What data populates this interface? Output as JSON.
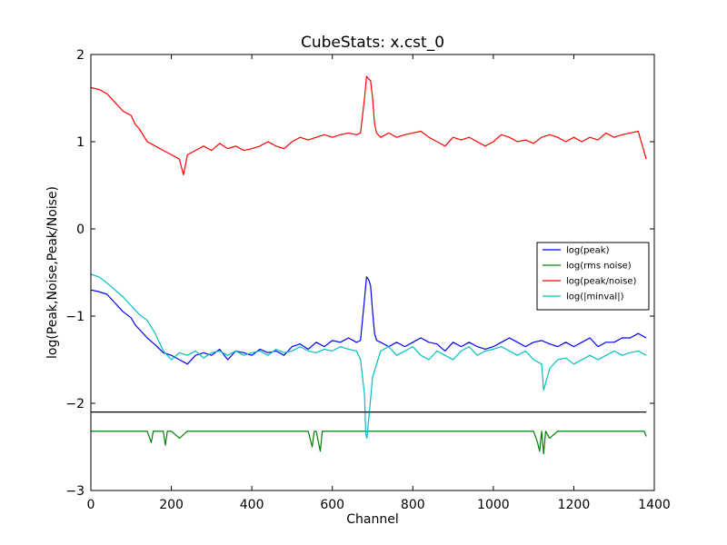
{
  "chart_data": {
    "type": "line",
    "title": "CubeStats: x.cst_0",
    "xlabel": "Channel",
    "ylabel": "log(Peak,Noise,Peak/Noise)",
    "xlim": [
      0,
      1400
    ],
    "ylim": [
      -3,
      2
    ],
    "xticks": [
      0,
      200,
      400,
      600,
      800,
      1000,
      1200,
      1400
    ],
    "yticks": [
      -3,
      -2,
      -1,
      0,
      1,
      2
    ],
    "xtick_labels": [
      "0",
      "200",
      "400",
      "600",
      "800",
      "1000",
      "1200",
      "1400"
    ],
    "ytick_labels": [
      "−3",
      "−2",
      "−1",
      "0",
      "1",
      "2"
    ],
    "grid": false,
    "legend_position": "center-right",
    "series": [
      {
        "name": "log(peak)",
        "color": "#0000ff",
        "x": [
          0,
          20,
          40,
          60,
          80,
          100,
          110,
          120,
          140,
          160,
          180,
          200,
          220,
          240,
          260,
          280,
          300,
          320,
          340,
          360,
          380,
          400,
          420,
          440,
          460,
          480,
          500,
          520,
          540,
          560,
          580,
          600,
          620,
          640,
          660,
          670,
          680,
          685,
          690,
          695,
          700,
          705,
          710,
          720,
          740,
          760,
          780,
          800,
          820,
          840,
          860,
          880,
          900,
          920,
          940,
          960,
          980,
          1000,
          1020,
          1040,
          1060,
          1080,
          1100,
          1120,
          1140,
          1160,
          1180,
          1200,
          1220,
          1240,
          1260,
          1280,
          1300,
          1320,
          1340,
          1360,
          1380
        ],
        "y": [
          -0.7,
          -0.72,
          -0.75,
          -0.85,
          -0.95,
          -1.02,
          -1.1,
          -1.15,
          -1.25,
          -1.33,
          -1.42,
          -1.45,
          -1.5,
          -1.55,
          -1.45,
          -1.42,
          -1.45,
          -1.38,
          -1.5,
          -1.4,
          -1.42,
          -1.45,
          -1.38,
          -1.42,
          -1.4,
          -1.45,
          -1.35,
          -1.32,
          -1.38,
          -1.3,
          -1.35,
          -1.28,
          -1.3,
          -1.25,
          -1.3,
          -1.28,
          -0.8,
          -0.55,
          -0.58,
          -0.65,
          -0.95,
          -1.2,
          -1.28,
          -1.3,
          -1.35,
          -1.3,
          -1.35,
          -1.3,
          -1.25,
          -1.3,
          -1.32,
          -1.4,
          -1.3,
          -1.35,
          -1.3,
          -1.35,
          -1.38,
          -1.35,
          -1.3,
          -1.25,
          -1.3,
          -1.35,
          -1.3,
          -1.28,
          -1.32,
          -1.35,
          -1.3,
          -1.35,
          -1.3,
          -1.25,
          -1.35,
          -1.3,
          -1.3,
          -1.25,
          -1.25,
          -1.2,
          -1.25
        ]
      },
      {
        "name": "log(rms noise)",
        "color": "#008000",
        "x": [
          0,
          20,
          40,
          60,
          80,
          100,
          120,
          140,
          150,
          155,
          160,
          180,
          185,
          190,
          200,
          220,
          240,
          260,
          280,
          300,
          320,
          340,
          360,
          380,
          400,
          420,
          440,
          460,
          480,
          500,
          520,
          540,
          550,
          555,
          560,
          570,
          575,
          580,
          600,
          620,
          640,
          660,
          680,
          700,
          720,
          740,
          760,
          780,
          800,
          820,
          840,
          860,
          880,
          900,
          920,
          940,
          960,
          980,
          1000,
          1020,
          1040,
          1060,
          1080,
          1100,
          1110,
          1115,
          1120,
          1125,
          1130,
          1140,
          1160,
          1180,
          1200,
          1220,
          1240,
          1260,
          1280,
          1300,
          1320,
          1340,
          1360,
          1375,
          1380
        ],
        "y": [
          -2.32,
          -2.32,
          -2.32,
          -2.32,
          -2.32,
          -2.32,
          -2.32,
          -2.32,
          -2.45,
          -2.32,
          -2.32,
          -2.32,
          -2.48,
          -2.32,
          -2.32,
          -2.4,
          -2.32,
          -2.32,
          -2.32,
          -2.32,
          -2.32,
          -2.32,
          -2.32,
          -2.32,
          -2.32,
          -2.32,
          -2.32,
          -2.32,
          -2.32,
          -2.32,
          -2.32,
          -2.32,
          -2.5,
          -2.32,
          -2.32,
          -2.55,
          -2.32,
          -2.32,
          -2.32,
          -2.32,
          -2.32,
          -2.32,
          -2.32,
          -2.32,
          -2.32,
          -2.32,
          -2.32,
          -2.32,
          -2.32,
          -2.32,
          -2.32,
          -2.32,
          -2.32,
          -2.32,
          -2.32,
          -2.32,
          -2.32,
          -2.32,
          -2.32,
          -2.32,
          -2.32,
          -2.32,
          -2.32,
          -2.32,
          -2.45,
          -2.55,
          -2.32,
          -2.58,
          -2.32,
          -2.4,
          -2.32,
          -2.32,
          -2.32,
          -2.32,
          -2.32,
          -2.32,
          -2.32,
          -2.32,
          -2.32,
          -2.32,
          -2.32,
          -2.32,
          -2.38
        ]
      },
      {
        "name": "log(peak/noise)",
        "color": "#ff0000",
        "x": [
          0,
          20,
          40,
          60,
          80,
          100,
          110,
          120,
          140,
          160,
          180,
          200,
          220,
          230,
          240,
          260,
          280,
          300,
          320,
          340,
          360,
          380,
          400,
          420,
          440,
          460,
          480,
          500,
          520,
          540,
          560,
          580,
          600,
          620,
          640,
          660,
          670,
          680,
          685,
          690,
          695,
          700,
          705,
          710,
          720,
          740,
          760,
          780,
          800,
          820,
          840,
          860,
          880,
          900,
          920,
          940,
          960,
          980,
          1000,
          1020,
          1040,
          1060,
          1080,
          1100,
          1120,
          1140,
          1160,
          1180,
          1200,
          1220,
          1240,
          1260,
          1280,
          1300,
          1320,
          1340,
          1360,
          1380
        ],
        "y": [
          1.62,
          1.6,
          1.55,
          1.45,
          1.35,
          1.3,
          1.2,
          1.15,
          1.0,
          0.95,
          0.9,
          0.85,
          0.8,
          0.62,
          0.85,
          0.9,
          0.95,
          0.9,
          0.98,
          0.92,
          0.95,
          0.9,
          0.92,
          0.95,
          1.0,
          0.95,
          0.92,
          1.0,
          1.05,
          1.02,
          1.05,
          1.08,
          1.05,
          1.08,
          1.1,
          1.08,
          1.1,
          1.5,
          1.75,
          1.72,
          1.7,
          1.5,
          1.2,
          1.1,
          1.05,
          1.1,
          1.05,
          1.08,
          1.1,
          1.12,
          1.05,
          1.0,
          0.95,
          1.05,
          1.02,
          1.05,
          1.0,
          0.95,
          1.0,
          1.08,
          1.05,
          1.0,
          1.02,
          0.98,
          1.05,
          1.08,
          1.05,
          1.0,
          1.05,
          1.0,
          1.05,
          1.02,
          1.1,
          1.05,
          1.08,
          1.1,
          1.12,
          0.8
        ]
      },
      {
        "name": "log(|minval|)",
        "color": "#00bfbf",
        "x": [
          0,
          20,
          40,
          60,
          80,
          100,
          120,
          140,
          160,
          180,
          200,
          220,
          240,
          260,
          280,
          300,
          320,
          340,
          360,
          380,
          400,
          420,
          440,
          460,
          480,
          500,
          520,
          540,
          560,
          580,
          600,
          620,
          640,
          660,
          670,
          680,
          683,
          686,
          690,
          700,
          720,
          740,
          760,
          780,
          800,
          820,
          840,
          860,
          880,
          900,
          920,
          940,
          960,
          980,
          1000,
          1020,
          1040,
          1060,
          1080,
          1100,
          1120,
          1125,
          1140,
          1160,
          1180,
          1200,
          1220,
          1240,
          1260,
          1280,
          1300,
          1320,
          1340,
          1360,
          1380
        ],
        "y": [
          -0.52,
          -0.55,
          -0.62,
          -0.7,
          -0.78,
          -0.88,
          -0.98,
          -1.05,
          -1.2,
          -1.4,
          -1.5,
          -1.42,
          -1.45,
          -1.4,
          -1.48,
          -1.42,
          -1.4,
          -1.45,
          -1.4,
          -1.45,
          -1.42,
          -1.4,
          -1.45,
          -1.38,
          -1.42,
          -1.4,
          -1.35,
          -1.4,
          -1.42,
          -1.38,
          -1.4,
          -1.35,
          -1.38,
          -1.4,
          -1.5,
          -1.9,
          -2.35,
          -2.4,
          -2.2,
          -1.7,
          -1.4,
          -1.35,
          -1.45,
          -1.4,
          -1.35,
          -1.45,
          -1.5,
          -1.4,
          -1.45,
          -1.5,
          -1.4,
          -1.35,
          -1.45,
          -1.4,
          -1.38,
          -1.35,
          -1.4,
          -1.45,
          -1.4,
          -1.5,
          -1.55,
          -1.85,
          -1.6,
          -1.5,
          -1.48,
          -1.55,
          -1.5,
          -1.45,
          -1.5,
          -1.45,
          -1.4,
          -1.45,
          -1.42,
          -1.4,
          -1.45
        ]
      },
      {
        "name": "",
        "color": "#000000",
        "x": [
          0,
          1380
        ],
        "y": [
          -2.1,
          -2.1
        ]
      }
    ]
  }
}
